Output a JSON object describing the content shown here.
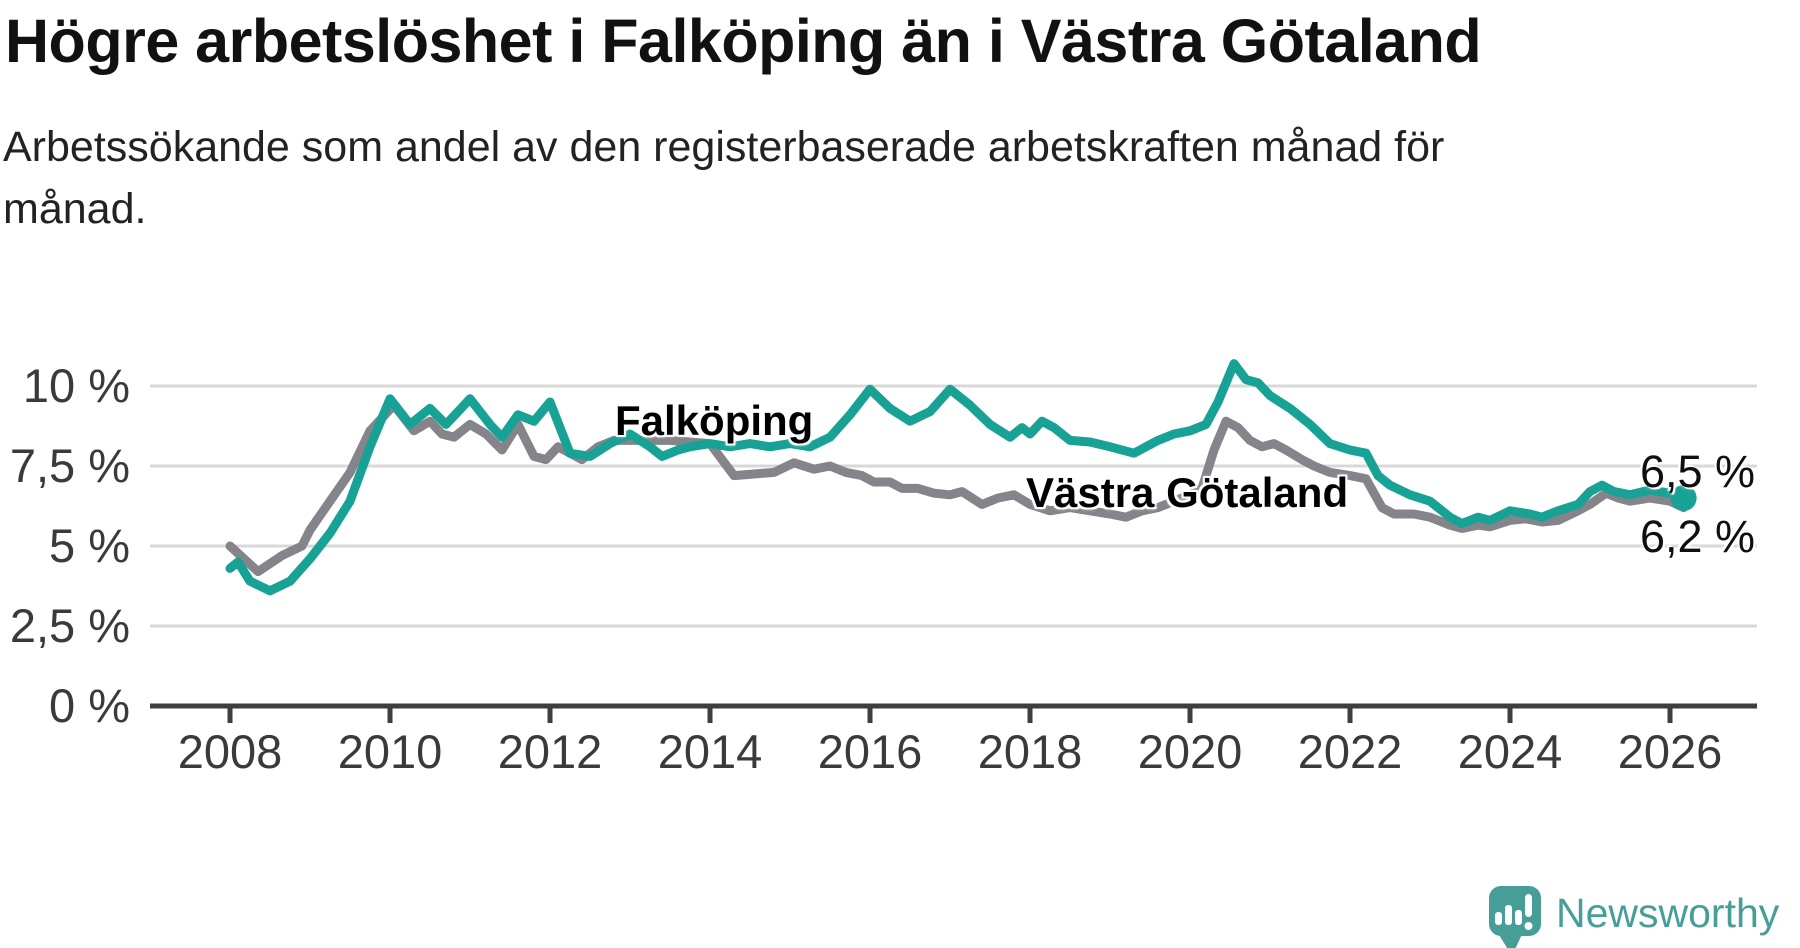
{
  "header": {
    "title": "Högre arbetslöshet i Falköping än i Västra Götaland",
    "subtitle": "Arbetssökande som andel av den registerbaserade arbetskraften månad för månad."
  },
  "colors": {
    "falkoping": "#17a295",
    "vastra_gotaland": "#84848a",
    "grid": "#d8d8d8",
    "axis": "#3e3e3e",
    "tick_text": "#3a3a3a",
    "logo": "#479e99"
  },
  "chart_data": {
    "type": "line",
    "title": "Högre arbetslöshet i Falköping än i Västra Götaland",
    "subtitle": "Arbetssökande som andel av den registerbaserade arbetskraften månad för månad.",
    "unit": "%",
    "xlim": [
      2007.0,
      2027.1
    ],
    "ylim": [
      0,
      11.5
    ],
    "grid": "horizontal",
    "legend_position": "inline-labels",
    "x_ticks": {
      "values": [
        2008,
        2010,
        2012,
        2014,
        2016,
        2018,
        2020,
        2022,
        2024,
        2026
      ],
      "labels": [
        "2008",
        "2010",
        "2012",
        "2014",
        "2016",
        "2018",
        "2020",
        "2022",
        "2024",
        "2026"
      ]
    },
    "y_ticks": {
      "values": [
        0,
        2.5,
        5,
        7.5,
        10
      ],
      "labels": [
        "0 %",
        "2,5 %",
        "5 %",
        "7,5 %",
        "10 %"
      ]
    },
    "series": [
      {
        "name": "Västra Götaland",
        "label": "Västra Götaland",
        "color_key": "vastra_gotaland",
        "end_label": "6,2 %",
        "end_dot": false,
        "points": [
          [
            2008.0,
            5.0
          ],
          [
            2008.35,
            4.2
          ],
          [
            2008.65,
            4.7
          ],
          [
            2008.9,
            5.0
          ],
          [
            2009.0,
            5.5
          ],
          [
            2009.25,
            6.4
          ],
          [
            2009.5,
            7.3
          ],
          [
            2009.75,
            8.6
          ],
          [
            2010.05,
            9.4
          ],
          [
            2010.3,
            8.6
          ],
          [
            2010.5,
            8.9
          ],
          [
            2010.65,
            8.5
          ],
          [
            2010.8,
            8.4
          ],
          [
            2011.0,
            8.8
          ],
          [
            2011.2,
            8.5
          ],
          [
            2011.4,
            8.0
          ],
          [
            2011.6,
            8.8
          ],
          [
            2011.8,
            7.8
          ],
          [
            2011.95,
            7.7
          ],
          [
            2012.1,
            8.1
          ],
          [
            2012.4,
            7.7
          ],
          [
            2012.6,
            8.1
          ],
          [
            2012.8,
            8.3
          ],
          [
            2013.0,
            8.3
          ],
          [
            2013.5,
            8.3
          ],
          [
            2014.0,
            8.2
          ],
          [
            2014.3,
            7.2
          ],
          [
            2014.55,
            7.25
          ],
          [
            2014.8,
            7.3
          ],
          [
            2015.05,
            7.6
          ],
          [
            2015.3,
            7.4
          ],
          [
            2015.5,
            7.5
          ],
          [
            2015.7,
            7.3
          ],
          [
            2015.9,
            7.2
          ],
          [
            2016.05,
            7.0
          ],
          [
            2016.25,
            7.0
          ],
          [
            2016.4,
            6.8
          ],
          [
            2016.6,
            6.8
          ],
          [
            2016.8,
            6.65
          ],
          [
            2017.0,
            6.6
          ],
          [
            2017.15,
            6.7
          ],
          [
            2017.4,
            6.3
          ],
          [
            2017.6,
            6.5
          ],
          [
            2017.8,
            6.6
          ],
          [
            2018.0,
            6.3
          ],
          [
            2018.25,
            6.1
          ],
          [
            2018.5,
            6.2
          ],
          [
            2018.75,
            6.1
          ],
          [
            2019.0,
            6.0
          ],
          [
            2019.2,
            5.9
          ],
          [
            2019.4,
            6.1
          ],
          [
            2019.6,
            6.2
          ],
          [
            2019.8,
            6.4
          ],
          [
            2020.0,
            6.6
          ],
          [
            2020.15,
            6.8
          ],
          [
            2020.3,
            8.0
          ],
          [
            2020.45,
            8.9
          ],
          [
            2020.6,
            8.7
          ],
          [
            2020.75,
            8.3
          ],
          [
            2020.9,
            8.1
          ],
          [
            2021.05,
            8.2
          ],
          [
            2021.2,
            8.0
          ],
          [
            2021.4,
            7.7
          ],
          [
            2021.55,
            7.5
          ],
          [
            2021.75,
            7.3
          ],
          [
            2022.0,
            7.2
          ],
          [
            2022.2,
            7.1
          ],
          [
            2022.4,
            6.2
          ],
          [
            2022.55,
            6.0
          ],
          [
            2022.8,
            6.0
          ],
          [
            2023.0,
            5.9
          ],
          [
            2023.25,
            5.65
          ],
          [
            2023.4,
            5.55
          ],
          [
            2023.6,
            5.65
          ],
          [
            2023.75,
            5.6
          ],
          [
            2024.0,
            5.8
          ],
          [
            2024.2,
            5.85
          ],
          [
            2024.4,
            5.75
          ],
          [
            2024.6,
            5.8
          ],
          [
            2024.85,
            6.1
          ],
          [
            2025.0,
            6.3
          ],
          [
            2025.2,
            6.65
          ],
          [
            2025.35,
            6.5
          ],
          [
            2025.5,
            6.4
          ],
          [
            2025.75,
            6.5
          ],
          [
            2026.0,
            6.4
          ],
          [
            2026.17,
            6.2
          ]
        ]
      },
      {
        "name": "Falköping",
        "label": "Falköping",
        "color_key": "falkoping",
        "end_label": "6,5 %",
        "end_dot": true,
        "points": [
          [
            2008.0,
            4.3
          ],
          [
            2008.1,
            4.5
          ],
          [
            2008.25,
            3.9
          ],
          [
            2008.5,
            3.6
          ],
          [
            2008.75,
            3.9
          ],
          [
            2009.0,
            4.6
          ],
          [
            2009.25,
            5.4
          ],
          [
            2009.5,
            6.4
          ],
          [
            2009.75,
            8.1
          ],
          [
            2010.0,
            9.6
          ],
          [
            2010.25,
            8.8
          ],
          [
            2010.5,
            9.3
          ],
          [
            2010.7,
            8.8
          ],
          [
            2011.0,
            9.6
          ],
          [
            2011.25,
            8.8
          ],
          [
            2011.4,
            8.4
          ],
          [
            2011.6,
            9.1
          ],
          [
            2011.8,
            8.9
          ],
          [
            2012.0,
            9.5
          ],
          [
            2012.25,
            7.9
          ],
          [
            2012.5,
            7.8
          ],
          [
            2012.75,
            8.2
          ],
          [
            2013.0,
            8.5
          ],
          [
            2013.25,
            8.1
          ],
          [
            2013.4,
            7.8
          ],
          [
            2013.6,
            8.0
          ],
          [
            2013.75,
            8.1
          ],
          [
            2014.0,
            8.2
          ],
          [
            2014.25,
            8.1
          ],
          [
            2014.5,
            8.2
          ],
          [
            2014.75,
            8.1
          ],
          [
            2015.0,
            8.2
          ],
          [
            2015.25,
            8.1
          ],
          [
            2015.5,
            8.4
          ],
          [
            2015.75,
            9.1
          ],
          [
            2016.0,
            9.9
          ],
          [
            2016.25,
            9.3
          ],
          [
            2016.5,
            8.9
          ],
          [
            2016.75,
            9.2
          ],
          [
            2017.0,
            9.9
          ],
          [
            2017.25,
            9.4
          ],
          [
            2017.5,
            8.8
          ],
          [
            2017.75,
            8.4
          ],
          [
            2017.9,
            8.7
          ],
          [
            2018.0,
            8.5
          ],
          [
            2018.15,
            8.9
          ],
          [
            2018.3,
            8.7
          ],
          [
            2018.5,
            8.3
          ],
          [
            2018.75,
            8.25
          ],
          [
            2019.0,
            8.1
          ],
          [
            2019.3,
            7.9
          ],
          [
            2019.6,
            8.3
          ],
          [
            2019.8,
            8.5
          ],
          [
            2020.0,
            8.6
          ],
          [
            2020.2,
            8.8
          ],
          [
            2020.35,
            9.5
          ],
          [
            2020.55,
            10.7
          ],
          [
            2020.7,
            10.2
          ],
          [
            2020.85,
            10.1
          ],
          [
            2021.0,
            9.7
          ],
          [
            2021.25,
            9.3
          ],
          [
            2021.5,
            8.8
          ],
          [
            2021.75,
            8.2
          ],
          [
            2022.0,
            8.0
          ],
          [
            2022.2,
            7.9
          ],
          [
            2022.35,
            7.2
          ],
          [
            2022.5,
            6.9
          ],
          [
            2022.75,
            6.6
          ],
          [
            2023.0,
            6.4
          ],
          [
            2023.25,
            5.9
          ],
          [
            2023.4,
            5.7
          ],
          [
            2023.6,
            5.9
          ],
          [
            2023.75,
            5.8
          ],
          [
            2024.0,
            6.1
          ],
          [
            2024.25,
            6.0
          ],
          [
            2024.4,
            5.9
          ],
          [
            2024.6,
            6.1
          ],
          [
            2024.85,
            6.3
          ],
          [
            2025.0,
            6.7
          ],
          [
            2025.15,
            6.9
          ],
          [
            2025.3,
            6.7
          ],
          [
            2025.5,
            6.6
          ],
          [
            2025.75,
            6.75
          ],
          [
            2026.0,
            6.65
          ],
          [
            2026.17,
            6.5
          ]
        ]
      }
    ]
  },
  "logo": {
    "text": "Newsworthy"
  }
}
